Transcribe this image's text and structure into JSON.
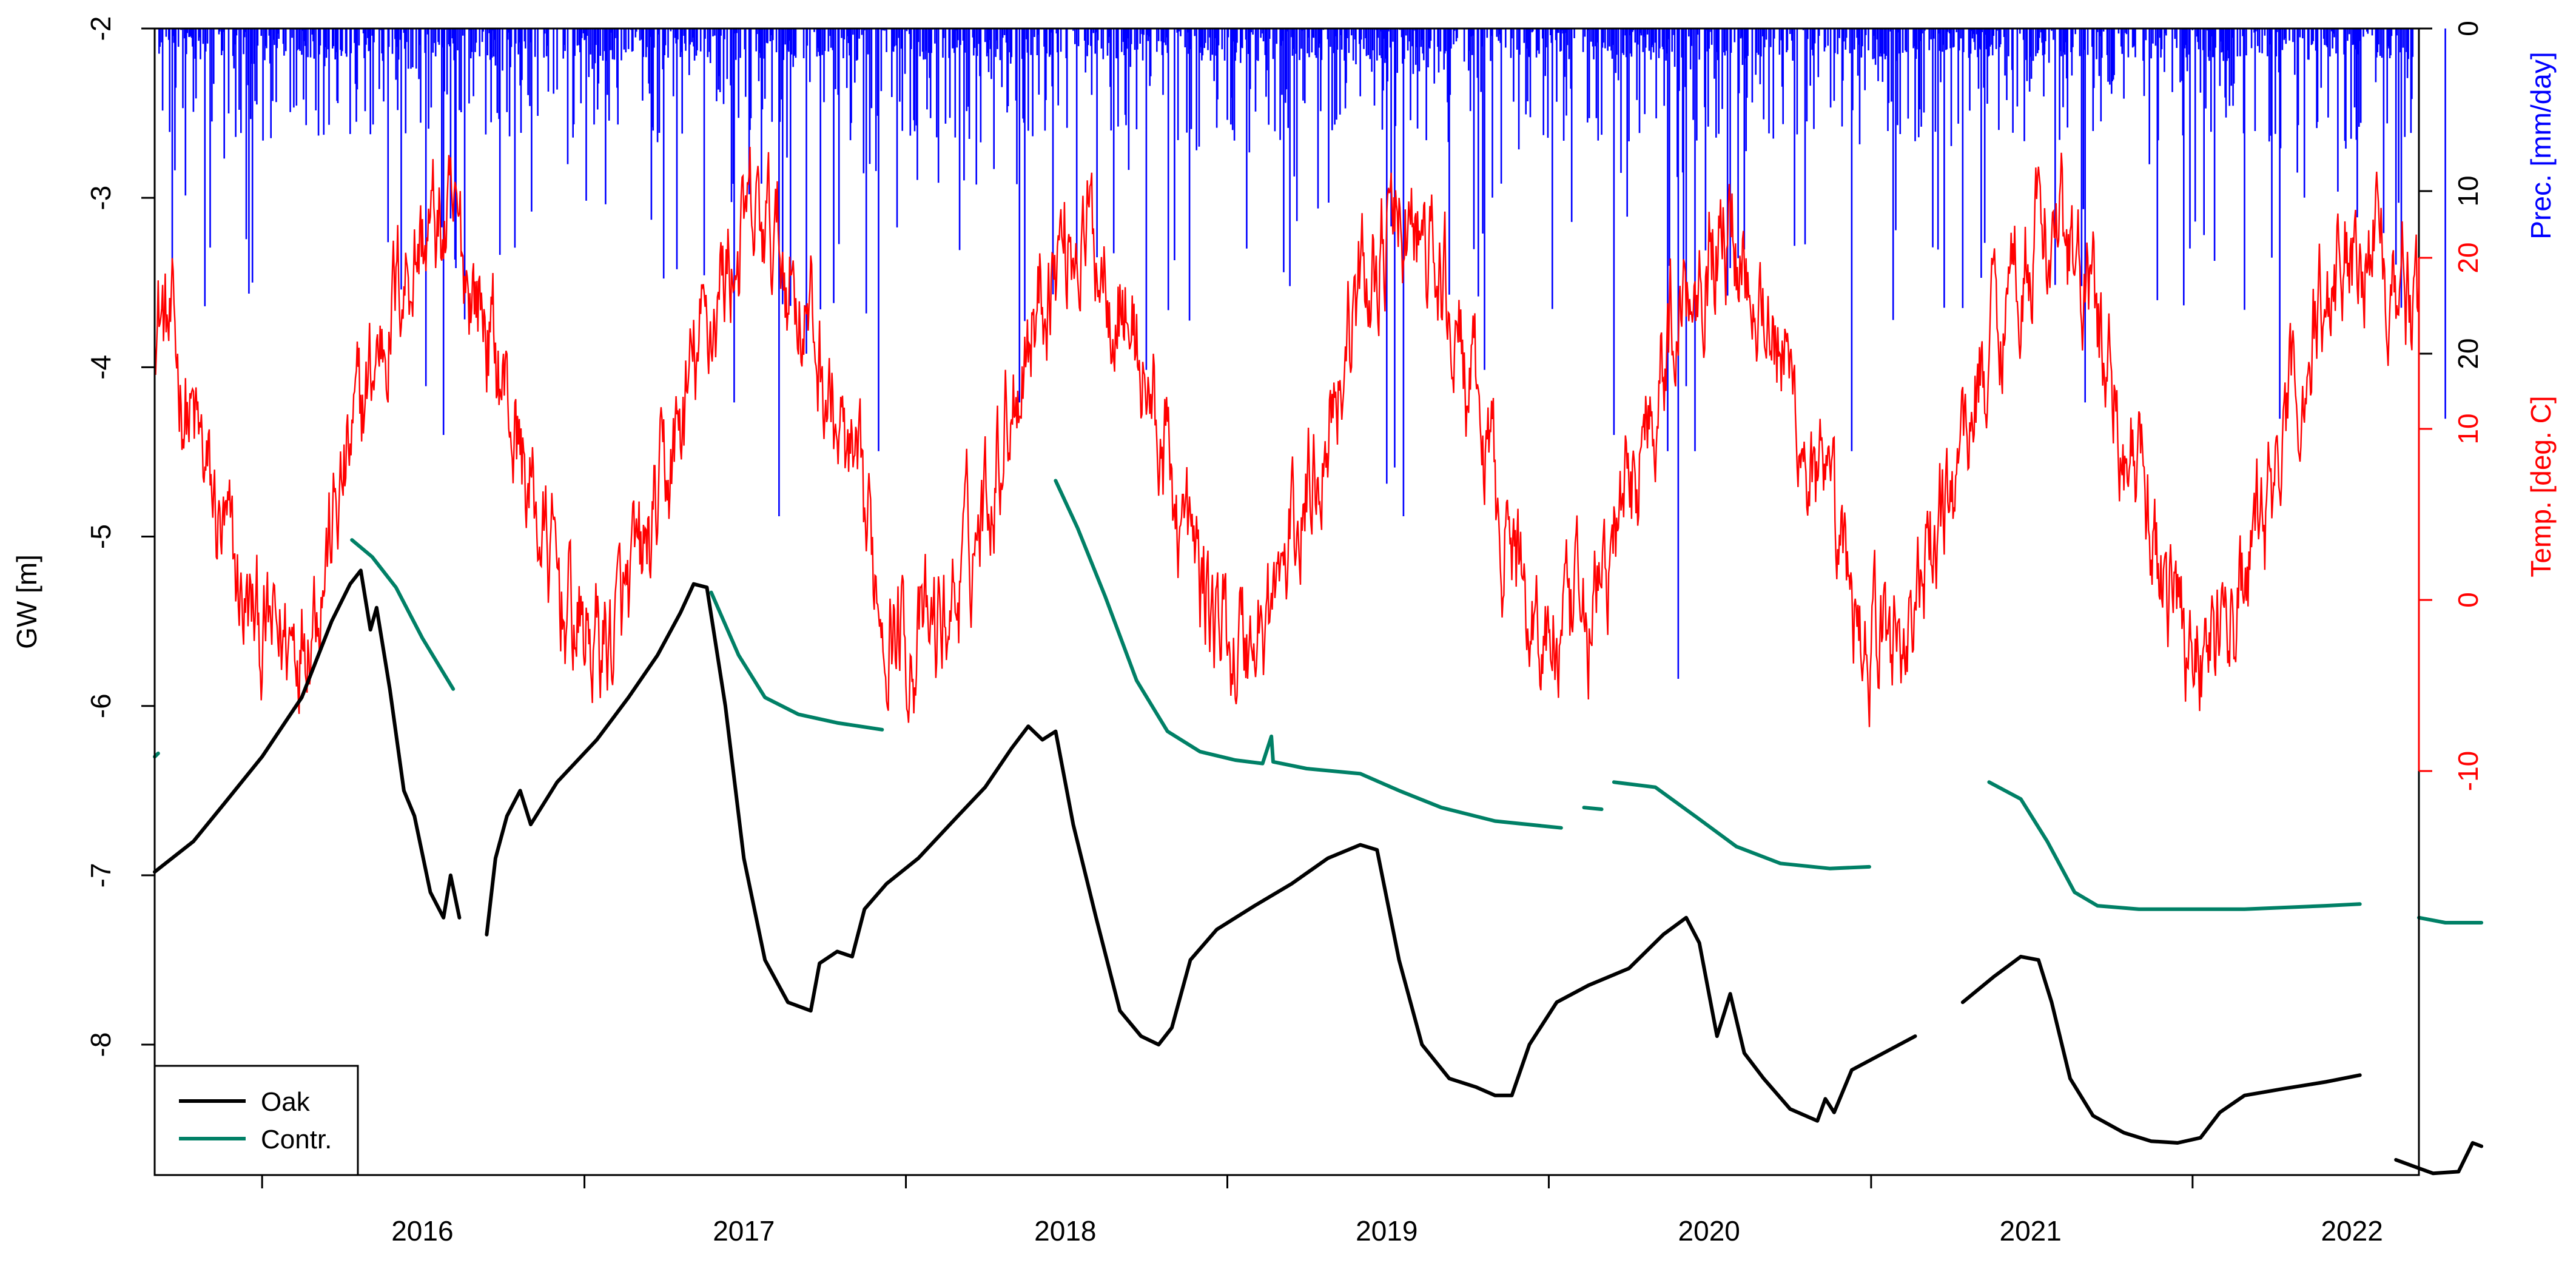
{
  "chart_data": {
    "type": "line",
    "xlabel": "",
    "x_tick_labels": [
      "2016",
      "2017",
      "2018",
      "2019",
      "2020",
      "2021",
      "2022"
    ],
    "x_range": [
      "2015-09-01",
      "2022-09-15"
    ],
    "left_axis": {
      "label": "GW [m]",
      "ylim": [
        -8.77,
        -2.0
      ],
      "ticks": [
        -2,
        -3,
        -4,
        -5,
        -6,
        -7,
        -8
      ]
    },
    "right_axis_precip": {
      "label": "Prec. [mm/day]",
      "color": "#0000ff",
      "inverted": true,
      "ticks": [
        0,
        10,
        20
      ]
    },
    "right_axis_temp": {
      "label": "Temp. [deg. C]",
      "color": "#ff0000",
      "ticks": [
        20,
        10,
        0,
        -10
      ]
    },
    "legend": {
      "placement": "bottom-left",
      "entries": [
        {
          "label": "Oak",
          "color": "#000000"
        },
        {
          "label": "Contr.",
          "color": "#008066"
        }
      ]
    },
    "series": [
      {
        "name": "Oak",
        "axis": "GW",
        "color": "#000000",
        "segments": [
          [
            [
              "2015-09-01",
              -6.98
            ],
            [
              "2015-10-15",
              -6.8
            ],
            [
              "2015-11-20",
              -6.57
            ],
            [
              "2016-01-01",
              -6.3
            ],
            [
              "2016-02-15",
              -5.95
            ],
            [
              "2016-03-20",
              -5.5
            ],
            [
              "2016-04-10",
              -5.28
            ],
            [
              "2016-04-22",
              -5.2
            ],
            [
              "2016-05-03",
              -5.55
            ],
            [
              "2016-05-10",
              -5.42
            ],
            [
              "2016-05-25",
              -5.9
            ],
            [
              "2016-06-10",
              -6.5
            ],
            [
              "2016-06-22",
              -6.65
            ],
            [
              "2016-07-10",
              -7.1
            ],
            [
              "2016-07-25",
              -7.25
            ],
            [
              "2016-08-02",
              -7.0
            ],
            [
              "2016-08-12",
              -7.25
            ]
          ],
          [
            [
              "2016-09-12",
              -7.35
            ],
            [
              "2016-09-22",
              -6.9
            ],
            [
              "2016-10-05",
              -6.65
            ],
            [
              "2016-10-20",
              -6.5
            ],
            [
              "2016-11-01",
              -6.7
            ],
            [
              "2016-12-01",
              -6.45
            ],
            [
              "2017-01-15",
              -6.2
            ],
            [
              "2017-02-20",
              -5.95
            ],
            [
              "2017-03-25",
              -5.7
            ],
            [
              "2017-04-20",
              -5.45
            ],
            [
              "2017-05-05",
              -5.28
            ],
            [
              "2017-05-20",
              -5.3
            ],
            [
              "2017-06-10",
              -6.0
            ],
            [
              "2017-07-01",
              -6.9
            ],
            [
              "2017-07-25",
              -7.5
            ],
            [
              "2017-08-20",
              -7.75
            ],
            [
              "2017-09-15",
              -7.8
            ],
            [
              "2017-09-25",
              -7.52
            ],
            [
              "2017-10-15",
              -7.45
            ],
            [
              "2017-11-01",
              -7.48
            ],
            [
              "2017-11-15",
              -7.2
            ],
            [
              "2017-12-10",
              -7.05
            ],
            [
              "2018-01-15",
              -6.9
            ],
            [
              "2018-03-01",
              -6.65
            ],
            [
              "2018-04-01",
              -6.48
            ],
            [
              "2018-05-01",
              -6.25
            ],
            [
              "2018-05-20",
              -6.12
            ],
            [
              "2018-06-05",
              -6.2
            ],
            [
              "2018-06-20",
              -6.15
            ],
            [
              "2018-07-10",
              -6.7
            ],
            [
              "2018-08-05",
              -7.25
            ],
            [
              "2018-09-01",
              -7.8
            ],
            [
              "2018-09-25",
              -7.95
            ],
            [
              "2018-10-15",
              -8.0
            ],
            [
              "2018-10-30",
              -7.9
            ],
            [
              "2018-11-20",
              -7.5
            ],
            [
              "2018-12-20",
              -7.32
            ],
            [
              "2019-02-01",
              -7.18
            ],
            [
              "2019-03-15",
              -7.05
            ],
            [
              "2019-04-25",
              -6.9
            ],
            [
              "2019-06-01",
              -6.82
            ],
            [
              "2019-06-20",
              -6.85
            ],
            [
              "2019-07-15",
              -7.5
            ],
            [
              "2019-08-10",
              -8.0
            ],
            [
              "2019-09-10",
              -8.2
            ],
            [
              "2019-10-10",
              -8.25
            ],
            [
              "2019-11-01",
              -8.3
            ],
            [
              "2019-11-20",
              -8.3
            ],
            [
              "2019-12-10",
              -8.0
            ],
            [
              "2020-01-10",
              -7.75
            ],
            [
              "2020-02-15",
              -7.65
            ],
            [
              "2020-04-01",
              -7.55
            ],
            [
              "2020-05-10",
              -7.35
            ],
            [
              "2020-06-05",
              -7.25
            ],
            [
              "2020-06-20",
              -7.4
            ],
            [
              "2020-07-10",
              -7.95
            ],
            [
              "2020-07-25",
              -7.7
            ],
            [
              "2020-08-10",
              -8.05
            ],
            [
              "2020-09-01",
              -8.2
            ],
            [
              "2020-10-01",
              -8.38
            ],
            [
              "2020-11-01",
              -8.45
            ],
            [
              "2020-11-10",
              -8.32
            ],
            [
              "2020-11-20",
              -8.4
            ],
            [
              "2020-12-10",
              -8.15
            ],
            [
              "2021-01-15",
              -8.05
            ],
            [
              "2021-02-20",
              -7.95
            ]
          ],
          [
            [
              "2021-04-15",
              -7.75
            ],
            [
              "2021-05-20",
              -7.6
            ],
            [
              "2021-06-20",
              -7.48
            ],
            [
              "2021-07-10",
              -7.5
            ],
            [
              "2021-07-25",
              -7.75
            ],
            [
              "2021-08-15",
              -8.2
            ],
            [
              "2021-09-10",
              -8.42
            ],
            [
              "2021-10-15",
              -8.52
            ],
            [
              "2021-11-15",
              -8.57
            ],
            [
              "2021-12-15",
              -8.58
            ],
            [
              "2022-01-10",
              -8.55
            ],
            [
              "2022-02-01",
              -8.4
            ],
            [
              "2022-03-01",
              -8.3
            ],
            [
              "2022-04-15",
              -8.26
            ],
            [
              "2022-06-01",
              -8.22
            ],
            [
              "2022-07-10",
              -8.18
            ]
          ],
          [
            [
              "2022-08-20",
              -8.68
            ],
            [
              "2022-09-15",
              -8.73
            ],
            [
              "2022-10-01",
              -8.76
            ],
            [
              "2022-10-30",
              -8.75
            ],
            [
              "2022-11-15",
              -8.58
            ],
            [
              "2022-11-25",
              -8.6
            ]
          ]
        ]
      },
      {
        "name": "Contr.",
        "axis": "GW",
        "color": "#008066",
        "segments": [
          [
            [
              "2015-09-01",
              -6.3
            ],
            [
              "2015-09-05",
              -6.28
            ]
          ],
          [
            [
              "2016-04-12",
              -5.02
            ],
            [
              "2016-05-05",
              -5.12
            ],
            [
              "2016-06-01",
              -5.3
            ],
            [
              "2016-07-01",
              -5.6
            ],
            [
              "2016-08-05",
              -5.9
            ]
          ],
          [
            [
              "2017-05-25",
              -5.33
            ],
            [
              "2017-06-25",
              -5.7
            ],
            [
              "2017-07-25",
              -5.95
            ],
            [
              "2017-09-01",
              -6.05
            ],
            [
              "2017-10-15",
              -6.1
            ],
            [
              "2017-12-05",
              -6.14
            ]
          ],
          [
            [
              "2018-06-20",
              -4.67
            ],
            [
              "2018-07-15",
              -4.95
            ],
            [
              "2018-08-15",
              -5.35
            ],
            [
              "2018-09-20",
              -5.85
            ],
            [
              "2018-10-25",
              -6.15
            ],
            [
              "2018-12-01",
              -6.27
            ],
            [
              "2019-01-10",
              -6.32
            ],
            [
              "2019-02-10",
              -6.34
            ],
            [
              "2019-02-20",
              -6.18
            ],
            [
              "2019-02-22",
              -6.33
            ],
            [
              "2019-04-01",
              -6.37
            ],
            [
              "2019-06-01",
              -6.4
            ],
            [
              "2019-07-15",
              -6.5
            ],
            [
              "2019-09-01",
              -6.6
            ],
            [
              "2019-11-01",
              -6.68
            ],
            [
              "2020-01-15",
              -6.72
            ]
          ],
          [
            [
              "2020-02-10",
              -6.6
            ],
            [
              "2020-03-01",
              -6.61
            ]
          ],
          [
            [
              "2020-03-15",
              -6.45
            ],
            [
              "2020-05-01",
              -6.48
            ],
            [
              "2020-06-15",
              -6.65
            ],
            [
              "2020-08-01",
              -6.83
            ],
            [
              "2020-09-20",
              -6.93
            ],
            [
              "2020-11-15",
              -6.96
            ],
            [
              "2020-12-30",
              -6.95
            ]
          ],
          [
            [
              "2021-05-15",
              -6.45
            ],
            [
              "2021-06-20",
              -6.55
            ],
            [
              "2021-07-20",
              -6.8
            ],
            [
              "2021-08-20",
              -7.1
            ],
            [
              "2021-09-15",
              -7.18
            ],
            [
              "2021-11-01",
              -7.2
            ],
            [
              "2022-03-01",
              -7.2
            ],
            [
              "2022-06-01",
              -7.18
            ],
            [
              "2022-07-10",
              -7.17
            ]
          ],
          [
            [
              "2022-09-15",
              -7.25
            ],
            [
              "2022-10-15",
              -7.28
            ],
            [
              "2022-11-25",
              -7.28
            ]
          ]
        ]
      },
      {
        "name": "",
        "type": "line",
        "axis": "Temp",
        "color": "#ff0000",
        "seasonal_model": {
          "mean_c": 9.5,
          "amplitude_c": 12.0,
          "coldest_day_of_year": 15,
          "daily_variability_c": 3.0
        },
        "visible_range_c": [
          -13,
          27
        ]
      },
      {
        "name": "",
        "type": "bar",
        "axis": "Prec",
        "color": "#0000ff",
        "typical_range_mm_day": [
          0,
          35
        ],
        "notable_peaks": [
          [
            "2016-07-05",
            22
          ],
          [
            "2016-07-25",
            25
          ],
          [
            "2017-06-20",
            23
          ],
          [
            "2017-08-10",
            30
          ],
          [
            "2017-09-10",
            20
          ],
          [
            "2017-12-01",
            26
          ],
          [
            "2018-05-10",
            23
          ],
          [
            "2018-10-01",
            21
          ],
          [
            "2019-07-01",
            28
          ],
          [
            "2019-07-10",
            27
          ],
          [
            "2019-07-20",
            30
          ],
          [
            "2019-10-20",
            21
          ],
          [
            "2020-03-15",
            25
          ],
          [
            "2020-05-15",
            26
          ],
          [
            "2020-05-27",
            40
          ],
          [
            "2020-06-05",
            22
          ],
          [
            "2020-06-15",
            26
          ],
          [
            "2020-12-10",
            26
          ],
          [
            "2021-09-01",
            23
          ],
          [
            "2022-04-10",
            24
          ],
          [
            "2022-10-15",
            24
          ]
        ]
      }
    ]
  }
}
